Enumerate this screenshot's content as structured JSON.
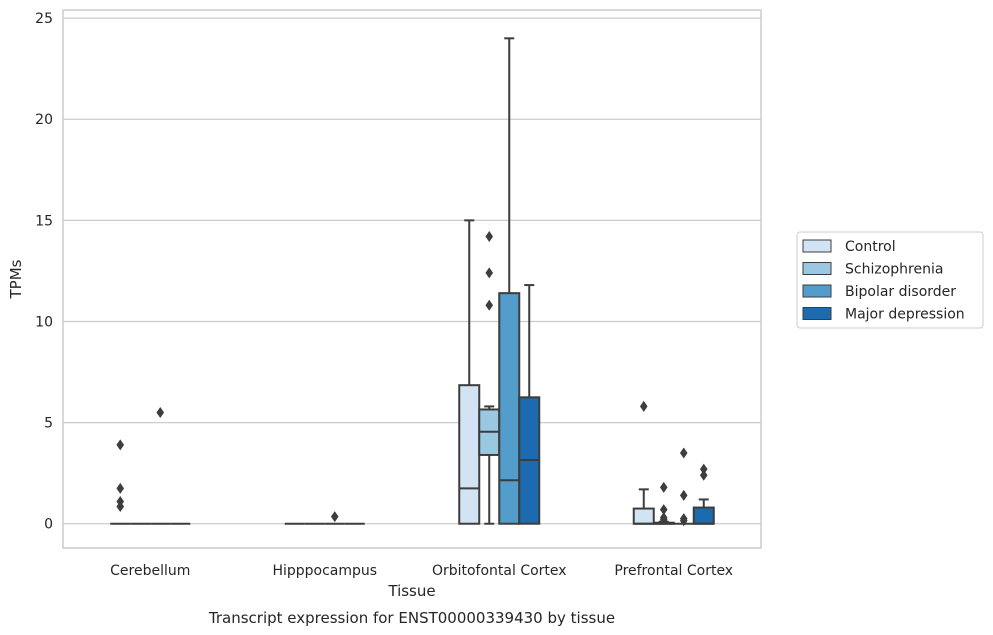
{
  "chart_data": {
    "type": "box",
    "title": "",
    "caption": "Transcript expression for ENST00000339430 by tissue",
    "xlabel": "Tissue",
    "ylabel": "TPMs",
    "ylim": [
      -1.2,
      25.4
    ],
    "yticks": [
      0,
      5,
      10,
      15,
      20,
      25
    ],
    "grid": "horizontal",
    "legend_position": "right",
    "categories": [
      "Cerebellum",
      "Hipppocampus",
      "Orbitofontal Cortex",
      "Prefrontal Cortex"
    ],
    "series": [
      {
        "name": "Control",
        "color": "#d2e3f3",
        "boxes": [
          {
            "category": "Cerebellum",
            "min": 0,
            "q1": 0,
            "median": 0,
            "q3": 0,
            "max": 0,
            "outliers": [
              3.9,
              1.75,
              1.1,
              0.85
            ]
          },
          {
            "category": "Hipppocampus",
            "min": 0,
            "q1": 0,
            "median": 0,
            "q3": 0,
            "max": 0,
            "outliers": []
          },
          {
            "category": "Orbitofontal Cortex",
            "min": 0,
            "q1": 0,
            "median": 1.75,
            "q3": 6.85,
            "max": 15.0,
            "outliers": []
          },
          {
            "category": "Prefrontal Cortex",
            "min": 0,
            "q1": 0,
            "median": 0,
            "q3": 0.75,
            "max": 1.7,
            "outliers": [
              5.8
            ]
          }
        ]
      },
      {
        "name": "Schizophrenia",
        "color": "#9ac8e0",
        "boxes": [
          {
            "category": "Cerebellum",
            "min": 0,
            "q1": 0,
            "median": 0,
            "q3": 0,
            "max": 0,
            "outliers": []
          },
          {
            "category": "Hipppocampus",
            "min": 0,
            "q1": 0,
            "median": 0,
            "q3": 0,
            "max": 0,
            "outliers": []
          },
          {
            "category": "Orbitofontal Cortex",
            "min": 0,
            "q1": 3.4,
            "median": 4.55,
            "q3": 5.65,
            "max": 5.8,
            "outliers": [
              14.2,
              12.4,
              10.8
            ]
          },
          {
            "category": "Prefrontal Cortex",
            "min": 0,
            "q1": 0,
            "median": 0,
            "q3": 0.05,
            "max": 0.1,
            "outliers": [
              1.8,
              0.7,
              0.3,
              0.2
            ]
          }
        ]
      },
      {
        "name": "Bipolar disorder",
        "color": "#529dcc",
        "boxes": [
          {
            "category": "Cerebellum",
            "min": 0,
            "q1": 0,
            "median": 0,
            "q3": 0,
            "max": 0,
            "outliers": [
              5.5
            ]
          },
          {
            "category": "Hipppocampus",
            "min": 0,
            "q1": 0,
            "median": 0,
            "q3": 0,
            "max": 0,
            "outliers": [
              0.35
            ]
          },
          {
            "category": "Orbitofontal Cortex",
            "min": 0,
            "q1": 0,
            "median": 2.15,
            "q3": 11.4,
            "max": 24.0,
            "outliers": []
          },
          {
            "category": "Prefrontal Cortex",
            "min": 0,
            "q1": 0,
            "median": 0,
            "q3": 0,
            "max": 0,
            "outliers": [
              3.5,
              1.4,
              0.25,
              0.15
            ]
          }
        ]
      },
      {
        "name": "Major depression",
        "color": "#1c6aaf",
        "boxes": [
          {
            "category": "Cerebellum",
            "min": 0,
            "q1": 0,
            "median": 0,
            "q3": 0,
            "max": 0,
            "outliers": []
          },
          {
            "category": "Hipppocampus",
            "min": 0,
            "q1": 0,
            "median": 0,
            "q3": 0,
            "max": 0,
            "outliers": []
          },
          {
            "category": "Orbitofontal Cortex",
            "min": 0,
            "q1": 0,
            "median": 3.15,
            "q3": 6.25,
            "max": 11.8,
            "outliers": []
          },
          {
            "category": "Prefrontal Cortex",
            "min": 0,
            "q1": 0,
            "median": 0,
            "q3": 0.8,
            "max": 1.2,
            "outliers": [
              2.7,
              2.4
            ]
          }
        ]
      }
    ]
  }
}
